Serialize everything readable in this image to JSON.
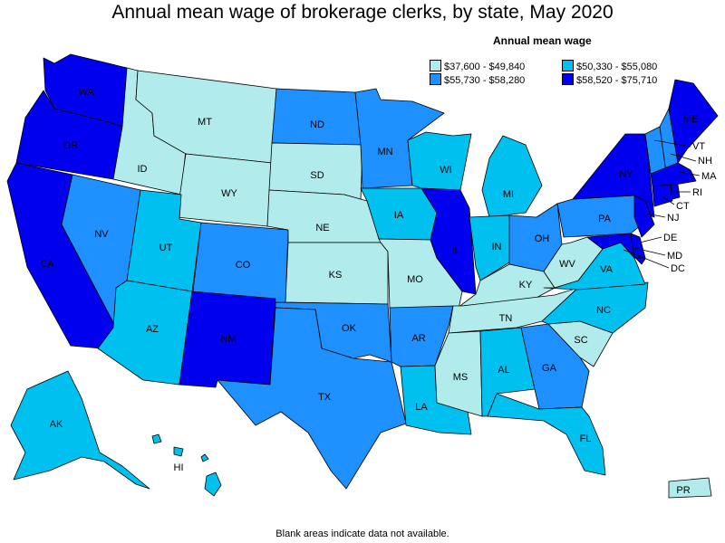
{
  "title": "Annual mean wage of brokerage clerks, by state, May 2020",
  "legend": {
    "title": "Annual mean wage",
    "ranges": [
      {
        "label": "$37,600 - $49,840",
        "color": "#b2ebeb"
      },
      {
        "label": "$50,330 - $55,080",
        "color": "#00c0f0"
      },
      {
        "label": "$55,730 - $58,280",
        "color": "#1e90ff"
      },
      {
        "label": "$58,520 - $75,710",
        "color": "#0000ee"
      }
    ]
  },
  "footnote": "Blank areas indicate data not available.",
  "states": [
    {
      "abbr": "WA",
      "bin": 3
    },
    {
      "abbr": "OR",
      "bin": 3
    },
    {
      "abbr": "CA",
      "bin": 3
    },
    {
      "abbr": "ID",
      "bin": 0
    },
    {
      "abbr": "NV",
      "bin": 2
    },
    {
      "abbr": "MT",
      "bin": 0
    },
    {
      "abbr": "WY",
      "bin": 0
    },
    {
      "abbr": "UT",
      "bin": 1
    },
    {
      "abbr": "AZ",
      "bin": 1
    },
    {
      "abbr": "CO",
      "bin": 2
    },
    {
      "abbr": "NM",
      "bin": 3
    },
    {
      "abbr": "ND",
      "bin": 2
    },
    {
      "abbr": "SD",
      "bin": 0
    },
    {
      "abbr": "NE",
      "bin": 0
    },
    {
      "abbr": "KS",
      "bin": 0
    },
    {
      "abbr": "OK",
      "bin": 2
    },
    {
      "abbr": "TX",
      "bin": 2
    },
    {
      "abbr": "MN",
      "bin": 2
    },
    {
      "abbr": "IA",
      "bin": 1
    },
    {
      "abbr": "MO",
      "bin": 0
    },
    {
      "abbr": "AR",
      "bin": 2
    },
    {
      "abbr": "LA",
      "bin": 1
    },
    {
      "abbr": "WI",
      "bin": 1
    },
    {
      "abbr": "IL",
      "bin": 3
    },
    {
      "abbr": "MI",
      "bin": 1
    },
    {
      "abbr": "IN",
      "bin": 1
    },
    {
      "abbr": "OH",
      "bin": 2
    },
    {
      "abbr": "KY",
      "bin": 0
    },
    {
      "abbr": "TN",
      "bin": 0
    },
    {
      "abbr": "MS",
      "bin": 0
    },
    {
      "abbr": "AL",
      "bin": 1
    },
    {
      "abbr": "GA",
      "bin": 2
    },
    {
      "abbr": "FL",
      "bin": 1
    },
    {
      "abbr": "SC",
      "bin": 0
    },
    {
      "abbr": "NC",
      "bin": 1
    },
    {
      "abbr": "VA",
      "bin": 1
    },
    {
      "abbr": "WV",
      "bin": 0
    },
    {
      "abbr": "PA",
      "bin": 2
    },
    {
      "abbr": "NY",
      "bin": 3
    },
    {
      "abbr": "VT",
      "bin": 2
    },
    {
      "abbr": "NH",
      "bin": 2
    },
    {
      "abbr": "ME",
      "bin": 3
    },
    {
      "abbr": "MA",
      "bin": 3
    },
    {
      "abbr": "RI",
      "bin": 3
    },
    {
      "abbr": "CT",
      "bin": 3
    },
    {
      "abbr": "NJ",
      "bin": 3
    },
    {
      "abbr": "DE",
      "bin": 3
    },
    {
      "abbr": "MD",
      "bin": 3
    },
    {
      "abbr": "DC",
      "bin": 3
    },
    {
      "abbr": "AK",
      "bin": 1
    },
    {
      "abbr": "HI",
      "bin": 1
    },
    {
      "abbr": "PR",
      "bin": 0
    }
  ]
}
